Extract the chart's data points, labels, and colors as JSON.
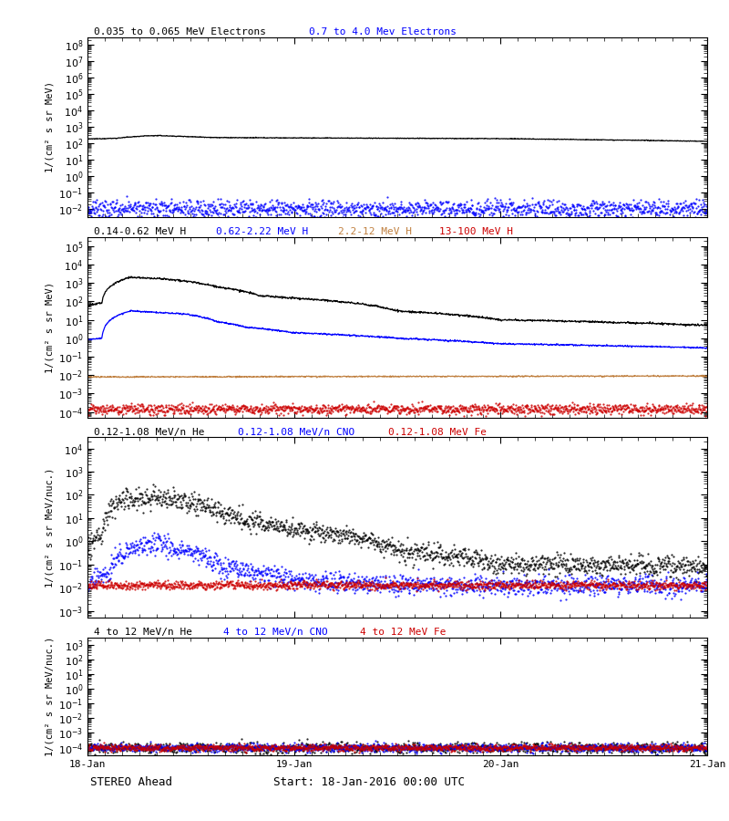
{
  "start_date": "18-Jan-2016 00:00 UTC",
  "spacecraft": "STEREO Ahead",
  "x_ticks": [
    "18-Jan",
    "19-Jan",
    "20-Jan",
    "21-Jan"
  ],
  "x_tick_positions": [
    0,
    1440,
    2880,
    4320
  ],
  "total_minutes": 4320,
  "panels": [
    {
      "legends": [
        {
          "label": "0.035 to 0.065 MeV Electrons",
          "color": "#000000"
        },
        {
          "label": "0.7 to 4.0 Mev Electrons",
          "color": "#0000ff"
        }
      ],
      "ylabel": "1/(cm² s sr MeV)",
      "ylim": [
        0.003,
        300000000.0
      ],
      "yticks": [
        0.01,
        1.0,
        100.0,
        10000.0,
        1000000.0,
        100000000.0
      ],
      "series": [
        {
          "color": "#000000",
          "base_val": 200,
          "style": "line",
          "bump_t": [
            0,
            200,
            400,
            500,
            600,
            900,
            1440,
            2880,
            4320
          ],
          "bump_v": [
            180,
            200,
            280,
            290,
            270,
            220,
            210,
            190,
            130
          ],
          "noise_std": 0.05
        },
        {
          "color": "#0000ff",
          "base_val": 0.01,
          "style": "dots",
          "bump_t": [
            0,
            4320
          ],
          "bump_v": [
            0.01,
            0.01
          ],
          "noise_std": 0.6
        }
      ]
    },
    {
      "legends": [
        {
          "label": "0.14-0.62 MeV H",
          "color": "#000000"
        },
        {
          "label": "0.62-2.22 MeV H",
          "color": "#0000ff"
        },
        {
          "label": "2.2-12 MeV H",
          "color": "#c08040"
        },
        {
          "label": "13-100 MeV H",
          "color": "#cc0000"
        }
      ],
      "ylabel": "1/(cm² s sr MeV)",
      "ylim": [
        5e-05,
        300000.0
      ],
      "yticks": [
        0.0001,
        0.01,
        1.0,
        100.0,
        10000.0
      ],
      "series": [
        {
          "color": "#000000",
          "base_val": 5,
          "style": "line",
          "bump_t": [
            0,
            100,
            300,
            600,
            900,
            1200,
            1440,
            2160,
            2880,
            4320
          ],
          "bump_v": [
            60,
            80,
            2000,
            1500,
            600,
            200,
            150,
            30,
            10,
            5
          ],
          "noise_std": 0.12
        },
        {
          "color": "#0000ff",
          "base_val": 1.0,
          "style": "line",
          "bump_t": [
            0,
            100,
            300,
            500,
            700,
            900,
            1100,
            1440,
            2160,
            2880,
            4320
          ],
          "bump_v": [
            0.8,
            1.0,
            30,
            25,
            20,
            8,
            4,
            2,
            1,
            0.5,
            0.3
          ],
          "noise_std": 0.1
        },
        {
          "color": "#c08040",
          "base_val": 0.008,
          "style": "line",
          "bump_t": [
            0,
            4320
          ],
          "bump_v": [
            0.008,
            0.009
          ],
          "noise_std": 0.08
        },
        {
          "color": "#cc0000",
          "base_val": 0.00015,
          "style": "dots",
          "bump_t": [
            0,
            4320
          ],
          "bump_v": [
            0.00015,
            0.00015
          ],
          "noise_std": 0.3
        }
      ]
    },
    {
      "legends": [
        {
          "label": "0.12-1.08 MeV/n He",
          "color": "#000000"
        },
        {
          "label": "0.12-1.08 MeV/n CNO",
          "color": "#0000ff"
        },
        {
          "label": "0.12-1.08 MeV Fe",
          "color": "#cc0000"
        }
      ],
      "ylabel": "1/(cm² s sr MeV/nuc.)",
      "ylim": [
        0.0005,
        30000.0
      ],
      "yticks": [
        0.001,
        0.01,
        0.1,
        1.0,
        10.0,
        100.0,
        1000.0,
        10000.0
      ],
      "series": [
        {
          "color": "#000000",
          "base_val": 0.08,
          "style": "dots",
          "bump_t": [
            0,
            100,
            250,
            450,
            700,
            900,
            1100,
            1440,
            2160,
            2880,
            3600,
            4320
          ],
          "bump_v": [
            0.5,
            2,
            60,
            90,
            50,
            20,
            8,
            3,
            0.4,
            0.1,
            0.1,
            0.08
          ],
          "noise_std": 0.5
        },
        {
          "color": "#0000ff",
          "base_val": 0.013,
          "style": "dots",
          "bump_t": [
            0,
            150,
            300,
            500,
            700,
            900,
            1100,
            1440,
            2160,
            4320
          ],
          "bump_v": [
            0.013,
            0.05,
            0.5,
            0.8,
            0.4,
            0.1,
            0.05,
            0.02,
            0.013,
            0.013
          ],
          "noise_std": 0.5
        },
        {
          "color": "#cc0000",
          "base_val": 0.013,
          "style": "dots",
          "bump_t": [
            0,
            4320
          ],
          "bump_v": [
            0.013,
            0.013
          ],
          "noise_std": 0.2
        }
      ]
    },
    {
      "legends": [
        {
          "label": "4 to 12 MeV/n He",
          "color": "#000000"
        },
        {
          "label": "4 to 12 MeV/n CNO",
          "color": "#0000ff"
        },
        {
          "label": "4 to 12 MeV Fe",
          "color": "#cc0000"
        }
      ],
      "ylabel": "1/(cm² s sr MeV/nuc.)",
      "ylim": [
        3e-05,
        3000.0
      ],
      "yticks": [
        0.0001,
        0.01,
        1.0,
        100.0
      ],
      "series": [
        {
          "color": "#000000",
          "base_val": 0.0001,
          "style": "dots",
          "bump_t": [
            0,
            4320
          ],
          "bump_v": [
            0.0001,
            0.0001
          ],
          "noise_std": 0.4
        },
        {
          "color": "#0000ff",
          "base_val": 0.0001,
          "style": "dots",
          "bump_t": [
            0,
            4320
          ],
          "bump_v": [
            0.0001,
            0.0001
          ],
          "noise_std": 0.3
        },
        {
          "color": "#cc0000",
          "base_val": 0.0001,
          "style": "dots",
          "bump_t": [
            0,
            4320
          ],
          "bump_v": [
            0.0001,
            0.0001
          ],
          "noise_std": 0.25
        }
      ]
    }
  ],
  "bg_color": "#ffffff",
  "font_color": "#000000",
  "legend_fontsize": 9,
  "axis_fontsize": 8,
  "tick_fontsize": 8
}
